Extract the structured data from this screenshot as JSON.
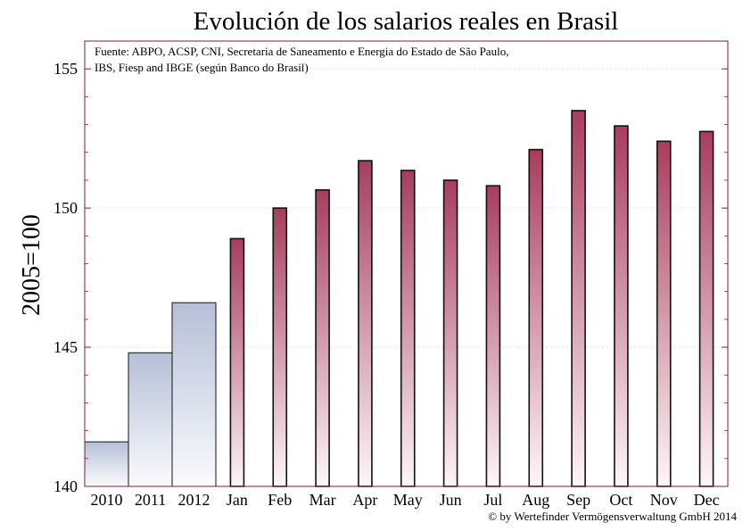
{
  "chart_data": {
    "type": "bar",
    "title": "Evolución de los salarios reales en Brasil",
    "xlabel": "",
    "ylabel": "2005=100",
    "ylim": [
      140,
      156
    ],
    "yticks": [
      140,
      145,
      150,
      155
    ],
    "grid": true,
    "source_lines": [
      "Fuente: ABPO, ACSP, CNI, Secretaria de Saneamento e Energia do Estado de São Paulo,",
      "IBS, Fiesp and IBGE (según Banco do Brasil)"
    ],
    "copyright": "© by Wertefinder Vermögensverwaltung GmbH 2014",
    "annual": {
      "categories": [
        "2010",
        "2011",
        "2012"
      ],
      "values": [
        141.6,
        144.8,
        146.6
      ]
    },
    "monthly": {
      "categories": [
        "Jan",
        "Feb",
        "Mar",
        "Apr",
        "May",
        "Jun",
        "Jul",
        "Aug",
        "Sep",
        "Oct",
        "Nov",
        "Dec"
      ],
      "values": [
        148.9,
        150.0,
        150.65,
        151.7,
        151.35,
        151.0,
        150.8,
        152.1,
        153.5,
        152.95,
        152.4,
        152.75
      ]
    },
    "colors": {
      "frame": "#7a1f3d",
      "annual_top": "#b5bfd6",
      "annual_bottom": "#fafbfd",
      "monthly_top": "#a83d5e",
      "monthly_bottom": "#fdf6f8",
      "grid": "#d9d9d9"
    }
  }
}
